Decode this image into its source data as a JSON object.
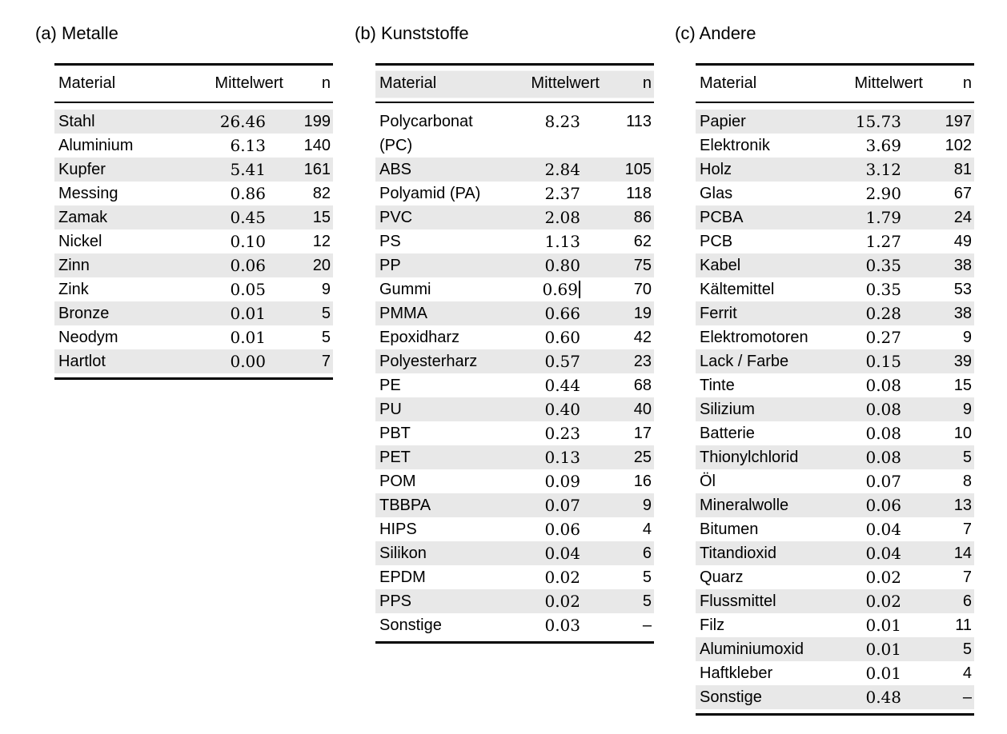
{
  "colors": {
    "background": "#ffffff",
    "stripe": "#e8e8e8",
    "rule": "#000000",
    "text": "#000000"
  },
  "tables": [
    {
      "caption": "(a) Metalle",
      "columns": {
        "material": "Material",
        "mean": "Mittelwert",
        "n": "n"
      },
      "header_shaded": false,
      "stripe_first_data_row": true,
      "rows": [
        {
          "material": "Stahl",
          "mean": "26.46",
          "n": "199"
        },
        {
          "material": "Aluminium",
          "mean": "6.13",
          "n": "140"
        },
        {
          "material": "Kupfer",
          "mean": "5.41",
          "n": "161"
        },
        {
          "material": "Messing",
          "mean": "0.86",
          "n": "82"
        },
        {
          "material": "Zamak",
          "mean": "0.45",
          "n": "15"
        },
        {
          "material": "Nickel",
          "mean": "0.10",
          "n": "12"
        },
        {
          "material": "Zinn",
          "mean": "0.06",
          "n": "20"
        },
        {
          "material": "Zink",
          "mean": "0.05",
          "n": "9"
        },
        {
          "material": "Bronze",
          "mean": "0.01",
          "n": "5"
        },
        {
          "material": "Neodym",
          "mean": "0.01",
          "n": "5"
        },
        {
          "material": "Hartlot",
          "mean": "0.00",
          "n": "7"
        }
      ]
    },
    {
      "caption": "(b) Kunststoffe",
      "columns": {
        "material": "Material",
        "mean": "Mittelwert",
        "n": "n"
      },
      "header_shaded": true,
      "stripe_first_data_row": false,
      "rows": [
        {
          "material": "Polycarbonat (PC)",
          "mean": "8.23",
          "n": "113"
        },
        {
          "material": "ABS",
          "mean": "2.84",
          "n": "105"
        },
        {
          "material": "Polyamid (PA)",
          "mean": "2.37",
          "n": "118"
        },
        {
          "material": "PVC",
          "mean": "2.08",
          "n": "86"
        },
        {
          "material": "PS",
          "mean": "1.13",
          "n": "62"
        },
        {
          "material": "PP",
          "mean": "0.80",
          "n": "75"
        },
        {
          "material": "Gummi",
          "mean": "0.69",
          "n": "70",
          "cursor": true
        },
        {
          "material": "PMMA",
          "mean": "0.66",
          "n": "19"
        },
        {
          "material": "Epoxidharz",
          "mean": "0.60",
          "n": "42"
        },
        {
          "material": "Polyesterharz",
          "mean": "0.57",
          "n": "23"
        },
        {
          "material": "PE",
          "mean": "0.44",
          "n": "68"
        },
        {
          "material": "PU",
          "mean": "0.40",
          "n": "40"
        },
        {
          "material": "PBT",
          "mean": "0.23",
          "n": "17"
        },
        {
          "material": "PET",
          "mean": "0.13",
          "n": "25"
        },
        {
          "material": "POM",
          "mean": "0.09",
          "n": "16"
        },
        {
          "material": "TBBPA",
          "mean": "0.07",
          "n": "9"
        },
        {
          "material": "HIPS",
          "mean": "0.06",
          "n": "4"
        },
        {
          "material": "Silikon",
          "mean": "0.04",
          "n": "6"
        },
        {
          "material": "EPDM",
          "mean": "0.02",
          "n": "5"
        },
        {
          "material": "PPS",
          "mean": "0.02",
          "n": "5"
        },
        {
          "material": "Sonstige",
          "mean": "0.03",
          "n": "–"
        }
      ]
    },
    {
      "caption": "(c) Andere",
      "columns": {
        "material": "Material",
        "mean": "Mittelwert",
        "n": "n"
      },
      "header_shaded": false,
      "stripe_first_data_row": true,
      "rows": [
        {
          "material": "Papier",
          "mean": "15.73",
          "n": "197"
        },
        {
          "material": "Elektronik",
          "mean": "3.69",
          "n": "102"
        },
        {
          "material": "Holz",
          "mean": "3.12",
          "n": "81"
        },
        {
          "material": "Glas",
          "mean": "2.90",
          "n": "67"
        },
        {
          "material": "PCBA",
          "mean": "1.79",
          "n": "24"
        },
        {
          "material": "PCB",
          "mean": "1.27",
          "n": "49"
        },
        {
          "material": "Kabel",
          "mean": "0.35",
          "n": "38"
        },
        {
          "material": "Kältemittel",
          "mean": "0.35",
          "n": "53"
        },
        {
          "material": "Ferrit",
          "mean": "0.28",
          "n": "38"
        },
        {
          "material": "Elektromotoren",
          "mean": "0.27",
          "n": "9"
        },
        {
          "material": "Lack / Farbe",
          "mean": "0.15",
          "n": "39"
        },
        {
          "material": "Tinte",
          "mean": "0.08",
          "n": "15"
        },
        {
          "material": "Silizium",
          "mean": "0.08",
          "n": "9"
        },
        {
          "material": "Batterie",
          "mean": "0.08",
          "n": "10"
        },
        {
          "material": "Thionylchlorid",
          "mean": "0.08",
          "n": "5"
        },
        {
          "material": "Öl",
          "mean": "0.07",
          "n": "8"
        },
        {
          "material": "Mineralwolle",
          "mean": "0.06",
          "n": "13"
        },
        {
          "material": "Bitumen",
          "mean": "0.04",
          "n": "7"
        },
        {
          "material": "Titandioxid",
          "mean": "0.04",
          "n": "14"
        },
        {
          "material": "Quarz",
          "mean": "0.02",
          "n": "7"
        },
        {
          "material": "Flussmittel",
          "mean": "0.02",
          "n": "6"
        },
        {
          "material": "Filz",
          "mean": "0.01",
          "n": "11"
        },
        {
          "material": "Aluminiumoxid",
          "mean": "0.01",
          "n": "5"
        },
        {
          "material": "Haftkleber",
          "mean": "0.01",
          "n": "4"
        },
        {
          "material": "Sonstige",
          "mean": "0.48",
          "n": "–"
        }
      ]
    }
  ]
}
